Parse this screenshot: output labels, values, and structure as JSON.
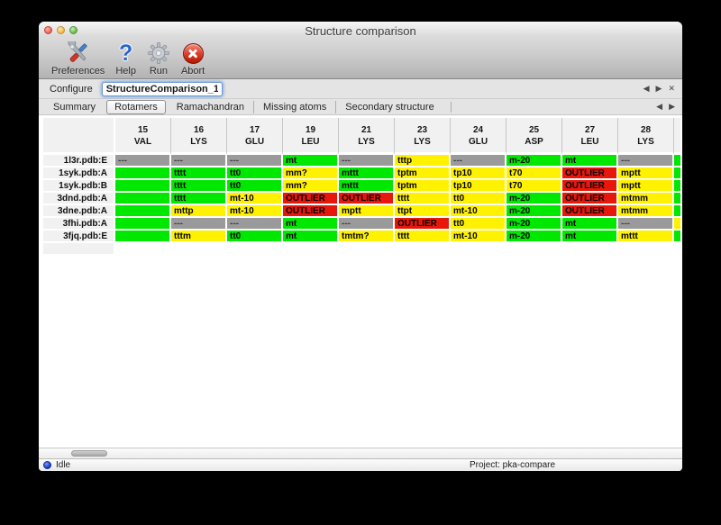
{
  "window": {
    "title": "Structure comparison"
  },
  "toolbar": {
    "buttons": [
      {
        "label": "Preferences",
        "icon": "tools-icon"
      },
      {
        "label": "Help",
        "icon": "question-icon",
        "glyph": "?"
      },
      {
        "label": "Run",
        "icon": "gear-icon"
      },
      {
        "label": "Abort",
        "icon": "stop-icon"
      }
    ]
  },
  "configure": {
    "label": "Configure",
    "value": "StructureComparison_1"
  },
  "nav": {
    "prev": "◀",
    "next": "▶",
    "close": "✕"
  },
  "tabs": {
    "items": [
      "Summary",
      "Rotamers",
      "Ramachandran",
      "Missing atoms",
      "Secondary structure"
    ],
    "selected": "Rotamers"
  },
  "colors": {
    "green": "#00e800",
    "yellow": "#fff200",
    "red": "#e8170b",
    "gray": "#9a9a9a"
  },
  "table": {
    "columns": [
      {
        "num": "15",
        "res": "VAL"
      },
      {
        "num": "16",
        "res": "LYS"
      },
      {
        "num": "17",
        "res": "GLU"
      },
      {
        "num": "19",
        "res": "LEU"
      },
      {
        "num": "21",
        "res": "LYS"
      },
      {
        "num": "23",
        "res": "LYS"
      },
      {
        "num": "24",
        "res": "GLU"
      },
      {
        "num": "25",
        "res": "ASP"
      },
      {
        "num": "27",
        "res": "LEU"
      },
      {
        "num": "28",
        "res": "LYS"
      }
    ],
    "rows": [
      {
        "label": "1l3r.pdb:E",
        "sliver": "green",
        "cells": [
          {
            "t": "---",
            "c": "gray"
          },
          {
            "t": "---",
            "c": "gray"
          },
          {
            "t": "---",
            "c": "gray"
          },
          {
            "t": "mt",
            "c": "green"
          },
          {
            "t": "---",
            "c": "gray"
          },
          {
            "t": "tttp",
            "c": "yellow"
          },
          {
            "t": "---",
            "c": "gray"
          },
          {
            "t": "m-20",
            "c": "green"
          },
          {
            "t": "mt",
            "c": "green"
          },
          {
            "t": "---",
            "c": "gray"
          }
        ]
      },
      {
        "label": "1syk.pdb:A",
        "sliver": "green",
        "cells": [
          {
            "t": "",
            "c": "green"
          },
          {
            "t": "tttt",
            "c": "green"
          },
          {
            "t": "tt0",
            "c": "green"
          },
          {
            "t": "mm?",
            "c": "yellow"
          },
          {
            "t": "mttt",
            "c": "green"
          },
          {
            "t": "tptm",
            "c": "yellow"
          },
          {
            "t": "tp10",
            "c": "yellow"
          },
          {
            "t": "t70",
            "c": "yellow"
          },
          {
            "t": "OUTLIER",
            "c": "red"
          },
          {
            "t": "mptt",
            "c": "yellow"
          }
        ]
      },
      {
        "label": "1syk.pdb:B",
        "sliver": "green",
        "cells": [
          {
            "t": "",
            "c": "green"
          },
          {
            "t": "tttt",
            "c": "green"
          },
          {
            "t": "tt0",
            "c": "green"
          },
          {
            "t": "mm?",
            "c": "yellow"
          },
          {
            "t": "mttt",
            "c": "green"
          },
          {
            "t": "tptm",
            "c": "yellow"
          },
          {
            "t": "tp10",
            "c": "yellow"
          },
          {
            "t": "t70",
            "c": "yellow"
          },
          {
            "t": "OUTLIER",
            "c": "red"
          },
          {
            "t": "mptt",
            "c": "yellow"
          }
        ]
      },
      {
        "label": "3dnd.pdb:A",
        "sliver": "green",
        "cells": [
          {
            "t": "",
            "c": "green"
          },
          {
            "t": "tttt",
            "c": "green"
          },
          {
            "t": "mt-10",
            "c": "yellow"
          },
          {
            "t": "OUTLIER",
            "c": "red"
          },
          {
            "t": "OUTLIER",
            "c": "red"
          },
          {
            "t": "tttt",
            "c": "yellow"
          },
          {
            "t": "tt0",
            "c": "yellow"
          },
          {
            "t": "m-20",
            "c": "green"
          },
          {
            "t": "OUTLIER",
            "c": "red"
          },
          {
            "t": "mtmm",
            "c": "yellow"
          }
        ]
      },
      {
        "label": "3dne.pdb:A",
        "sliver": "green",
        "cells": [
          {
            "t": "",
            "c": "green"
          },
          {
            "t": "mttp",
            "c": "yellow"
          },
          {
            "t": "mt-10",
            "c": "yellow"
          },
          {
            "t": "OUTLIER",
            "c": "red"
          },
          {
            "t": "mptt",
            "c": "yellow"
          },
          {
            "t": "ttpt",
            "c": "yellow"
          },
          {
            "t": "mt-10",
            "c": "yellow"
          },
          {
            "t": "m-20",
            "c": "green"
          },
          {
            "t": "OUTLIER",
            "c": "red"
          },
          {
            "t": "mtmm",
            "c": "yellow"
          }
        ]
      },
      {
        "label": "3fhi.pdb:A",
        "sliver": "yellow",
        "cells": [
          {
            "t": "",
            "c": "green"
          },
          {
            "t": "---",
            "c": "gray"
          },
          {
            "t": "---",
            "c": "gray"
          },
          {
            "t": "mt",
            "c": "green"
          },
          {
            "t": "---",
            "c": "gray"
          },
          {
            "t": "OUTLIER",
            "c": "red"
          },
          {
            "t": "tt0",
            "c": "yellow"
          },
          {
            "t": "m-20",
            "c": "green"
          },
          {
            "t": "mt",
            "c": "green"
          },
          {
            "t": "---",
            "c": "gray"
          }
        ]
      },
      {
        "label": "3fjq.pdb:E",
        "sliver": "green",
        "cells": [
          {
            "t": "",
            "c": "green"
          },
          {
            "t": "tttm",
            "c": "yellow"
          },
          {
            "t": "tt0",
            "c": "green"
          },
          {
            "t": "mt",
            "c": "green"
          },
          {
            "t": "tmtm?",
            "c": "yellow"
          },
          {
            "t": "tttt",
            "c": "yellow"
          },
          {
            "t": "mt-10",
            "c": "yellow"
          },
          {
            "t": "m-20",
            "c": "green"
          },
          {
            "t": "mt",
            "c": "green"
          },
          {
            "t": "mttt",
            "c": "yellow"
          }
        ]
      }
    ]
  },
  "statusbar": {
    "status": "Idle",
    "project": "Project: pka-compare"
  }
}
